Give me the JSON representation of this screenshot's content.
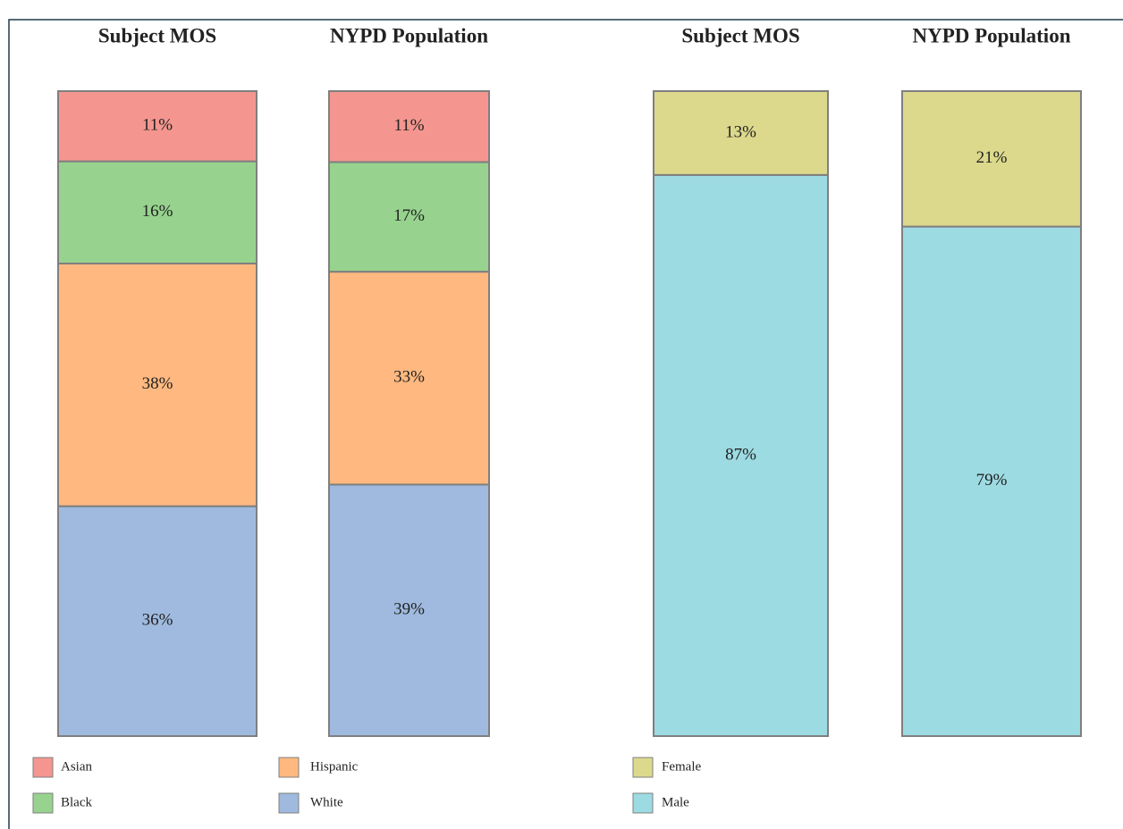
{
  "chart_data": [
    {
      "type": "bar",
      "stacked": true,
      "categories": [
        "Subject MOS",
        "NYPD Population"
      ],
      "series": [
        {
          "name": "Asian",
          "color": "#f4968f",
          "values": [
            11,
            11
          ],
          "value_labels": [
            "11%",
            "11%"
          ]
        },
        {
          "name": "Black",
          "color": "#97d38e",
          "values": [
            16,
            17
          ],
          "value_labels": [
            "16%",
            "17%"
          ]
        },
        {
          "name": "Hispanic",
          "color": "#ffb980",
          "values": [
            38,
            33
          ],
          "value_labels": [
            "38%",
            "33%"
          ]
        },
        {
          "name": "White",
          "color": "#9fbade",
          "values": [
            36,
            39
          ],
          "value_labels": [
            "36%",
            "39%"
          ]
        }
      ]
    },
    {
      "type": "bar",
      "stacked": true,
      "categories": [
        "Subject MOS",
        "NYPD Population"
      ],
      "series": [
        {
          "name": "Female",
          "color": "#dcd98c",
          "values": [
            13,
            21
          ],
          "value_labels": [
            "13%",
            "21%"
          ]
        },
        {
          "name": "Male",
          "color": "#9ddbe3",
          "values": [
            87,
            79
          ],
          "value_labels": [
            "87%",
            "79%"
          ]
        }
      ]
    }
  ]
}
